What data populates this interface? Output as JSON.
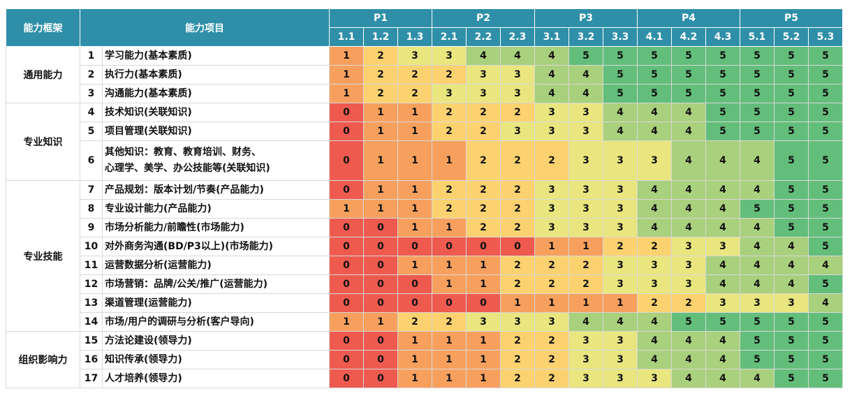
{
  "header": {
    "framework_label": "能力框架",
    "item_label": "能力项目",
    "levels": [
      "P1",
      "P2",
      "P3",
      "P4",
      "P5"
    ],
    "sublevels": [
      "1.1",
      "1.2",
      "1.3",
      "2.1",
      "2.2",
      "2.3",
      "3.1",
      "3.2",
      "3.3",
      "4.1",
      "4.2",
      "4.3",
      "5.1",
      "5.2",
      "5.3"
    ]
  },
  "colors": {
    "header": "#2f8fa8",
    "scale": [
      "#ef5a4f",
      "#f5a663",
      "#fbe37d",
      "#a8d07e",
      "#63be7b"
    ]
  },
  "groups": [
    {
      "name": "通用能力",
      "rows": [
        1,
        2,
        3
      ]
    },
    {
      "name": "专业知识",
      "rows": [
        4,
        5,
        6
      ]
    },
    {
      "name": "专业技能",
      "rows": [
        7,
        8,
        9,
        10,
        11,
        12,
        13,
        14
      ]
    },
    {
      "name": "组织影响力",
      "rows": [
        15,
        16,
        17
      ]
    }
  ],
  "chart_data": {
    "type": "heatmap",
    "columns": [
      "1.1",
      "1.2",
      "1.3",
      "2.1",
      "2.2",
      "2.3",
      "3.1",
      "3.2",
      "3.3",
      "4.1",
      "4.2",
      "4.3",
      "5.1",
      "5.2",
      "5.3"
    ],
    "rows": [
      {
        "no": "1",
        "name": "学习能力(基本素质)",
        "values": [
          1,
          2,
          3,
          3,
          4,
          4,
          4,
          5,
          5,
          5,
          5,
          5,
          5,
          5,
          5
        ]
      },
      {
        "no": "2",
        "name": "执行力(基本素质)",
        "values": [
          1,
          2,
          2,
          2,
          3,
          3,
          4,
          4,
          5,
          5,
          5,
          5,
          5,
          5,
          5
        ]
      },
      {
        "no": "3",
        "name": "沟通能力(基本素质)",
        "values": [
          1,
          2,
          2,
          3,
          3,
          3,
          4,
          4,
          5,
          5,
          5,
          5,
          5,
          5,
          5
        ]
      },
      {
        "no": "4",
        "name": "技术知识(关联知识)",
        "values": [
          0,
          1,
          1,
          2,
          2,
          2,
          3,
          3,
          4,
          4,
          4,
          5,
          5,
          5,
          5
        ]
      },
      {
        "no": "5",
        "name": "项目管理(关联知识)",
        "values": [
          0,
          1,
          1,
          2,
          2,
          3,
          3,
          3,
          4,
          4,
          4,
          5,
          5,
          5,
          5
        ]
      },
      {
        "no": "6",
        "name": "其他知识：教育、教育培训、财务、心理学、美学、办公技能等(关联知识)",
        "name_lines": [
          "其他知识：教育、教育培训、财务、",
          "心理学、美学、办公技能等(关联知识)"
        ],
        "values": [
          0,
          1,
          1,
          1,
          2,
          2,
          2,
          3,
          3,
          3,
          4,
          4,
          4,
          5,
          5
        ]
      },
      {
        "no": "7",
        "name": "产品规划：版本计划/节奏(产品能力)",
        "values": [
          0,
          1,
          1,
          2,
          2,
          2,
          3,
          3,
          3,
          4,
          4,
          4,
          4,
          5,
          5
        ]
      },
      {
        "no": "8",
        "name": "专业设计能力(产品能力)",
        "values": [
          1,
          1,
          1,
          2,
          2,
          2,
          3,
          3,
          3,
          4,
          4,
          4,
          5,
          5,
          5
        ]
      },
      {
        "no": "9",
        "name": "市场分析能力/前瞻性(市场能力)",
        "values": [
          0,
          0,
          1,
          1,
          2,
          2,
          3,
          3,
          3,
          4,
          4,
          4,
          4,
          5,
          5
        ]
      },
      {
        "no": "10",
        "name": "对外商务沟通(BD/P3以上)(市场能力)",
        "values": [
          0,
          0,
          0,
          0,
          0,
          0,
          1,
          1,
          2,
          2,
          3,
          3,
          4,
          4,
          5
        ]
      },
      {
        "no": "11",
        "name": "运营数据分析(运营能力)",
        "values": [
          0,
          0,
          1,
          1,
          1,
          2,
          2,
          2,
          3,
          3,
          3,
          4,
          4,
          4,
          4
        ]
      },
      {
        "no": "12",
        "name": "市场营销：品牌/公关/推广(运营能力)",
        "values": [
          0,
          0,
          0,
          1,
          1,
          2,
          2,
          2,
          3,
          3,
          3,
          4,
          4,
          4,
          5
        ]
      },
      {
        "no": "13",
        "name": "渠道管理(运营能力)",
        "values": [
          0,
          0,
          0,
          0,
          0,
          1,
          1,
          1,
          1,
          2,
          2,
          3,
          3,
          3,
          4
        ]
      },
      {
        "no": "14",
        "name": "市场/用户的调研与分析(客户导向)",
        "values": [
          1,
          1,
          2,
          2,
          3,
          3,
          3,
          4,
          4,
          4,
          5,
          5,
          5,
          5,
          5
        ]
      },
      {
        "no": "15",
        "name": "方法论建设(领导力)",
        "values": [
          0,
          0,
          1,
          1,
          1,
          2,
          2,
          3,
          3,
          4,
          4,
          4,
          5,
          5,
          5
        ]
      },
      {
        "no": "16",
        "name": "知识传承(领导力)",
        "values": [
          0,
          0,
          1,
          1,
          1,
          2,
          2,
          3,
          3,
          4,
          4,
          4,
          5,
          5,
          5
        ]
      },
      {
        "no": "17",
        "name": "人才培养(领导力)",
        "values": [
          0,
          0,
          1,
          1,
          1,
          2,
          2,
          3,
          3,
          3,
          4,
          4,
          4,
          5,
          5
        ]
      }
    ]
  }
}
